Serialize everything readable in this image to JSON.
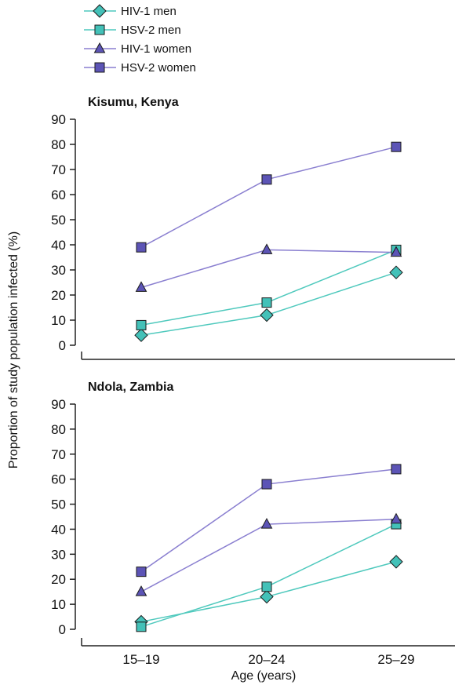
{
  "chart_data": {
    "type": "line",
    "legend": [
      "HIV-1 men",
      "HSV-2 men",
      "HIV-1 women",
      "HSV-2 women"
    ],
    "categories": [
      "15–19",
      "20–24",
      "25–29"
    ],
    "xlabel": "Age (years)",
    "ylabel": "Proportion of study population infected (%)",
    "ylim": [
      0,
      90
    ],
    "yticks": [
      "0",
      "10",
      "20",
      "30",
      "40",
      "50",
      "60",
      "70",
      "80",
      "90"
    ],
    "legend_position": "top-left",
    "grid": false,
    "colors": {
      "men_line": "#4fc9bd",
      "men_fill": "#43c1b8",
      "women_line": "#8a7fd0",
      "women_fill": "#5c54b6",
      "stroke": "#1a1a1a"
    },
    "panels": [
      {
        "title": "Kisumu, Kenya",
        "series": [
          {
            "name": "HIV-1 men",
            "marker": "diamond",
            "values": [
              4,
              12,
              29
            ]
          },
          {
            "name": "HSV-2 men",
            "marker": "square",
            "values": [
              8,
              17,
              38
            ]
          },
          {
            "name": "HIV-1 women",
            "marker": "triangle",
            "values": [
              23,
              38,
              37
            ]
          },
          {
            "name": "HSV-2 women",
            "marker": "square",
            "values": [
              39,
              66,
              79
            ]
          }
        ]
      },
      {
        "title": "Ndola, Zambia",
        "series": [
          {
            "name": "HIV-1 men",
            "marker": "diamond",
            "values": [
              3,
              13,
              27
            ]
          },
          {
            "name": "HSV-2 men",
            "marker": "square",
            "values": [
              1,
              17,
              42
            ]
          },
          {
            "name": "HIV-1 women",
            "marker": "triangle",
            "values": [
              15,
              42,
              44
            ]
          },
          {
            "name": "HSV-2 women",
            "marker": "square",
            "values": [
              23,
              58,
              64
            ]
          }
        ]
      }
    ]
  }
}
